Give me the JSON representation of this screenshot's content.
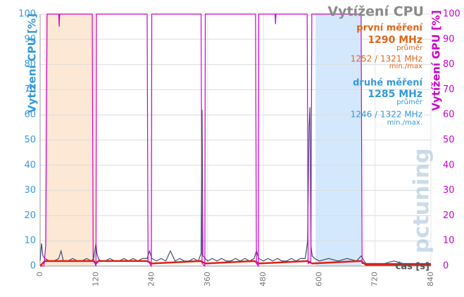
{
  "chart_data": {
    "type": "line",
    "title": "Vytížení CPU",
    "y_label": "Vytížení CPU [%]",
    "y2_label": "Vytížení GPU [%]",
    "x_label": "čas [s]",
    "watermark": "pctuning",
    "annotations": [
      {
        "text": "první měření",
        "color": "#e0661a"
      },
      {
        "text": "1290 MHz",
        "color": "#e0661a"
      },
      {
        "text": "průměr",
        "color": "#e0661a"
      },
      {
        "text": "1252 / 1321 MHz",
        "color": "#e0661a"
      },
      {
        "text": "min./max",
        "color": "#e0661a"
      },
      {
        "text": "druhé měření",
        "color": "#3399dd"
      },
      {
        "text": "1285 MHz",
        "color": "#3399dd"
      },
      {
        "text": "průměr",
        "color": "#3399dd"
      },
      {
        "text": "1246 / 1322 MHz",
        "color": "#3399dd"
      },
      {
        "text": "min./max.",
        "color": "#3399dd"
      }
    ],
    "regions": [
      {
        "start": 10,
        "end": 118,
        "color": "rgba(250,196,150,0.4)"
      },
      {
        "start": 592,
        "end": 690,
        "color": "rgba(160,205,250,0.45)"
      }
    ],
    "xlim": [
      0,
      840
    ],
    "xticks": [
      0,
      120,
      240,
      360,
      480,
      600,
      720,
      840
    ],
    "ylim": [
      0,
      100
    ],
    "yticks": [
      0,
      10,
      20,
      30,
      40,
      50,
      60,
      70,
      80,
      90,
      100
    ],
    "y2lim": [
      0,
      100
    ],
    "y2ticks": [
      0,
      10,
      20,
      30,
      40,
      50,
      60,
      70,
      80,
      90,
      100
    ],
    "grid": true,
    "series": [
      {
        "color": "#cc00cc",
        "axis": "y2",
        "x": [
          0,
          8,
          12,
          15,
          40,
          41,
          42,
          112,
          114,
          120,
          121,
          230,
          232,
          239,
          240,
          346,
          348,
          354,
          355,
          463,
          465,
          469,
          470,
          505,
          506,
          507,
          574,
          576,
          582,
          584,
          690,
          692,
          840
        ],
        "values": [
          0,
          0,
          8,
          100,
          100,
          95,
          100,
          100,
          3,
          0,
          100,
          100,
          2,
          0,
          100,
          100,
          1,
          0,
          100,
          100,
          1,
          0,
          100,
          100,
          96,
          100,
          100,
          1,
          2,
          100,
          100,
          1,
          1
        ]
      },
      {
        "color": "#3d4f75",
        "x": [
          0,
          3,
          6,
          10,
          20,
          30,
          40,
          45,
          50,
          60,
          70,
          80,
          90,
          100,
          110,
          115,
          120,
          122,
          125,
          130,
          140,
          150,
          160,
          170,
          180,
          190,
          200,
          210,
          220,
          230,
          235,
          240,
          250,
          260,
          270,
          280,
          290,
          300,
          310,
          320,
          330,
          340,
          346,
          348,
          350,
          355,
          360,
          370,
          380,
          390,
          400,
          410,
          420,
          430,
          440,
          450,
          460,
          465,
          470,
          480,
          490,
          500,
          510,
          520,
          530,
          540,
          550,
          560,
          570,
          575,
          578,
          580,
          582,
          585,
          590,
          600,
          620,
          640,
          660,
          680,
          690,
          700,
          720,
          740,
          760,
          780,
          800,
          820,
          840
        ],
        "values": [
          2,
          9,
          4,
          3,
          2,
          2,
          3,
          6,
          2,
          2,
          3,
          2,
          2,
          3,
          2,
          3,
          9,
          5,
          3,
          2,
          2,
          3,
          2,
          2,
          3,
          2,
          3,
          2,
          3,
          3,
          6,
          3,
          2,
          3,
          2,
          6,
          2,
          3,
          2,
          2,
          3,
          2,
          5,
          62,
          4,
          3,
          2,
          3,
          2,
          3,
          2,
          2,
          3,
          2,
          3,
          2,
          3,
          6,
          3,
          2,
          3,
          2,
          3,
          2,
          2,
          3,
          2,
          3,
          3,
          10,
          55,
          63,
          8,
          4,
          3,
          2,
          3,
          2,
          3,
          2,
          4,
          1,
          1,
          1,
          2,
          1,
          1,
          1,
          1
        ]
      },
      {
        "color": "#e02010",
        "x": [
          0,
          10,
          115,
          120,
          125,
          230,
          240,
          345,
          355,
          460,
          470,
          575,
          585,
          690,
          700,
          840
        ],
        "values": [
          0,
          2,
          2,
          1,
          2,
          2,
          1,
          2,
          1,
          2,
          1,
          2,
          1,
          2,
          0.5,
          0.5
        ]
      }
    ]
  }
}
